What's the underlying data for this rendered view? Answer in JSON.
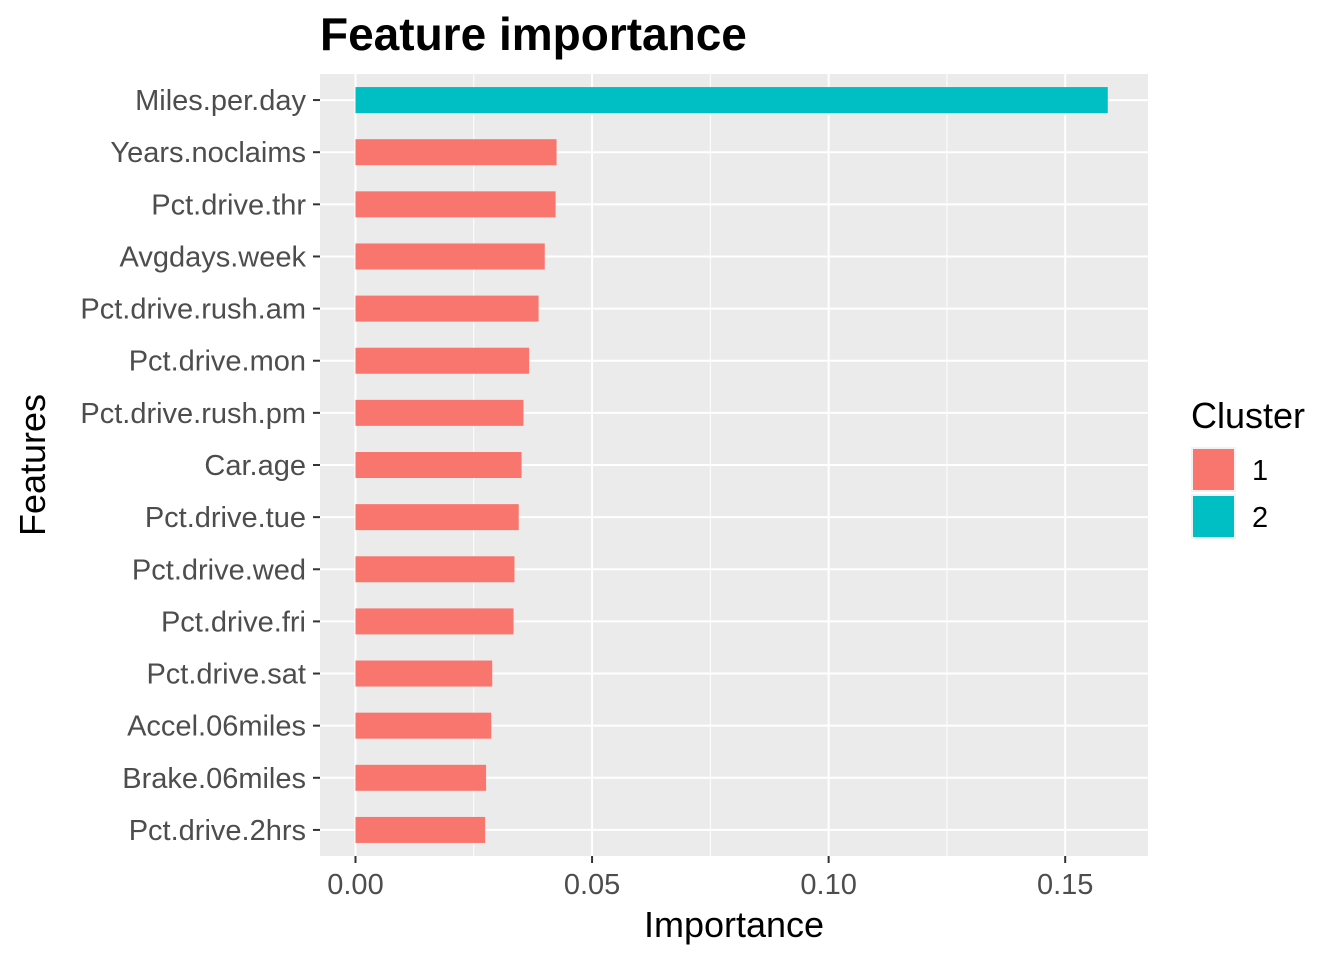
{
  "chart_data": {
    "type": "bar",
    "orientation": "horizontal",
    "title": "Feature importance",
    "xlabel": "Importance",
    "ylabel": "Features",
    "xlim": [
      -0.0075,
      0.1675
    ],
    "xticks": [
      0.0,
      0.05,
      0.1,
      0.15
    ],
    "xtick_labels": [
      "0.00",
      "0.05",
      "0.10",
      "0.15"
    ],
    "grid": true,
    "legend": {
      "title": "Cluster",
      "position": "right",
      "entries": [
        {
          "label": "1",
          "color": "#F8766D"
        },
        {
          "label": "2",
          "color": "#00BFC4"
        }
      ]
    },
    "categories": [
      "Miles.per.day",
      "Years.noclaims",
      "Pct.drive.thr",
      "Avgdays.week",
      "Pct.drive.rush.am",
      "Pct.drive.mon",
      "Pct.drive.rush.pm",
      "Car.age",
      "Pct.drive.tue",
      "Pct.drive.wed",
      "Pct.drive.fri",
      "Pct.drive.sat",
      "Accel.06miles",
      "Brake.06miles",
      "Pct.drive.2hrs"
    ],
    "values": [
      0.159,
      0.0425,
      0.0423,
      0.04,
      0.0387,
      0.0367,
      0.0355,
      0.0351,
      0.0345,
      0.0336,
      0.0334,
      0.0289,
      0.0287,
      0.0276,
      0.0274
    ],
    "cluster": [
      "2",
      "1",
      "1",
      "1",
      "1",
      "1",
      "1",
      "1",
      "1",
      "1",
      "1",
      "1",
      "1",
      "1",
      "1"
    ],
    "colors": {
      "1": "#F8766D",
      "2": "#00BFC4"
    }
  },
  "style": {
    "panel_background": "#EBEBEB",
    "grid_color": "#FFFFFF",
    "tick_color": "#333333"
  }
}
